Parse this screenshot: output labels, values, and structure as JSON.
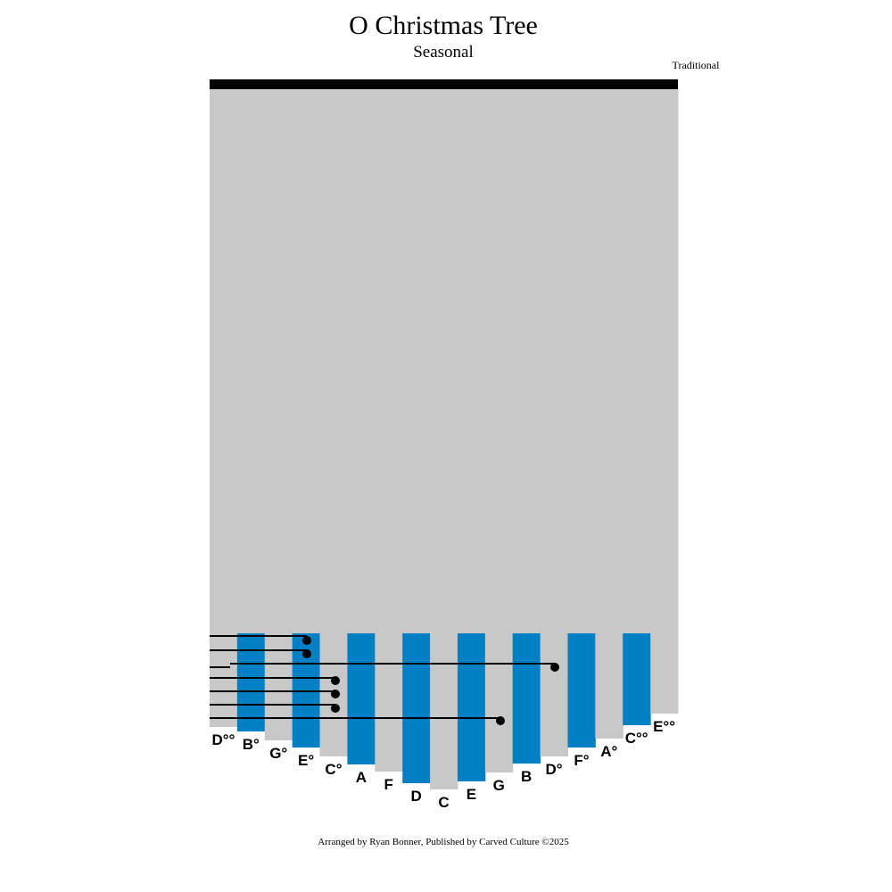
{
  "header": {
    "title": "O Christmas Tree",
    "subtitle": "Seasonal",
    "composer": "Traditional"
  },
  "tines": [
    "D°°",
    "B°",
    "G°",
    "E°",
    "C°",
    "A",
    "F",
    "D",
    "C",
    "E",
    "G",
    "B",
    "D°",
    "F°",
    "A°",
    "C°°",
    "E°°"
  ],
  "footer": "Arranged by Ryan Bonner, Published by Carved Culture ©2025"
}
